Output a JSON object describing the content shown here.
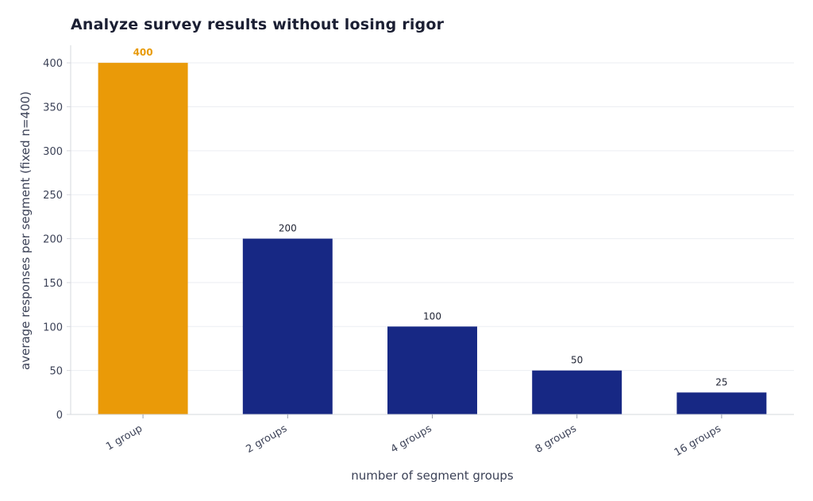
{
  "title": "Analyze survey results without losing rigor",
  "colors": {
    "highlight": "#EA9A08",
    "bar": "#172884",
    "grid": "#eceef2",
    "axis": "#d6d8de",
    "highlight_label": "#e89b0a"
  },
  "chart_data": {
    "type": "bar",
    "categories": [
      "1 group",
      "2 groups",
      "4 groups",
      "8 groups",
      "16 groups"
    ],
    "values": [
      400,
      200,
      100,
      50,
      25
    ],
    "data_labels": [
      "400",
      "200",
      "100",
      "50",
      "25"
    ],
    "highlight_index": 0,
    "xlabel": "number of segment groups",
    "ylabel": "average responses per segment (fixed n=400)",
    "ylim": [
      0,
      420
    ],
    "yticks": [
      0,
      50,
      100,
      150,
      200,
      250,
      300,
      350,
      400
    ],
    "grid": true,
    "legend": "none"
  }
}
